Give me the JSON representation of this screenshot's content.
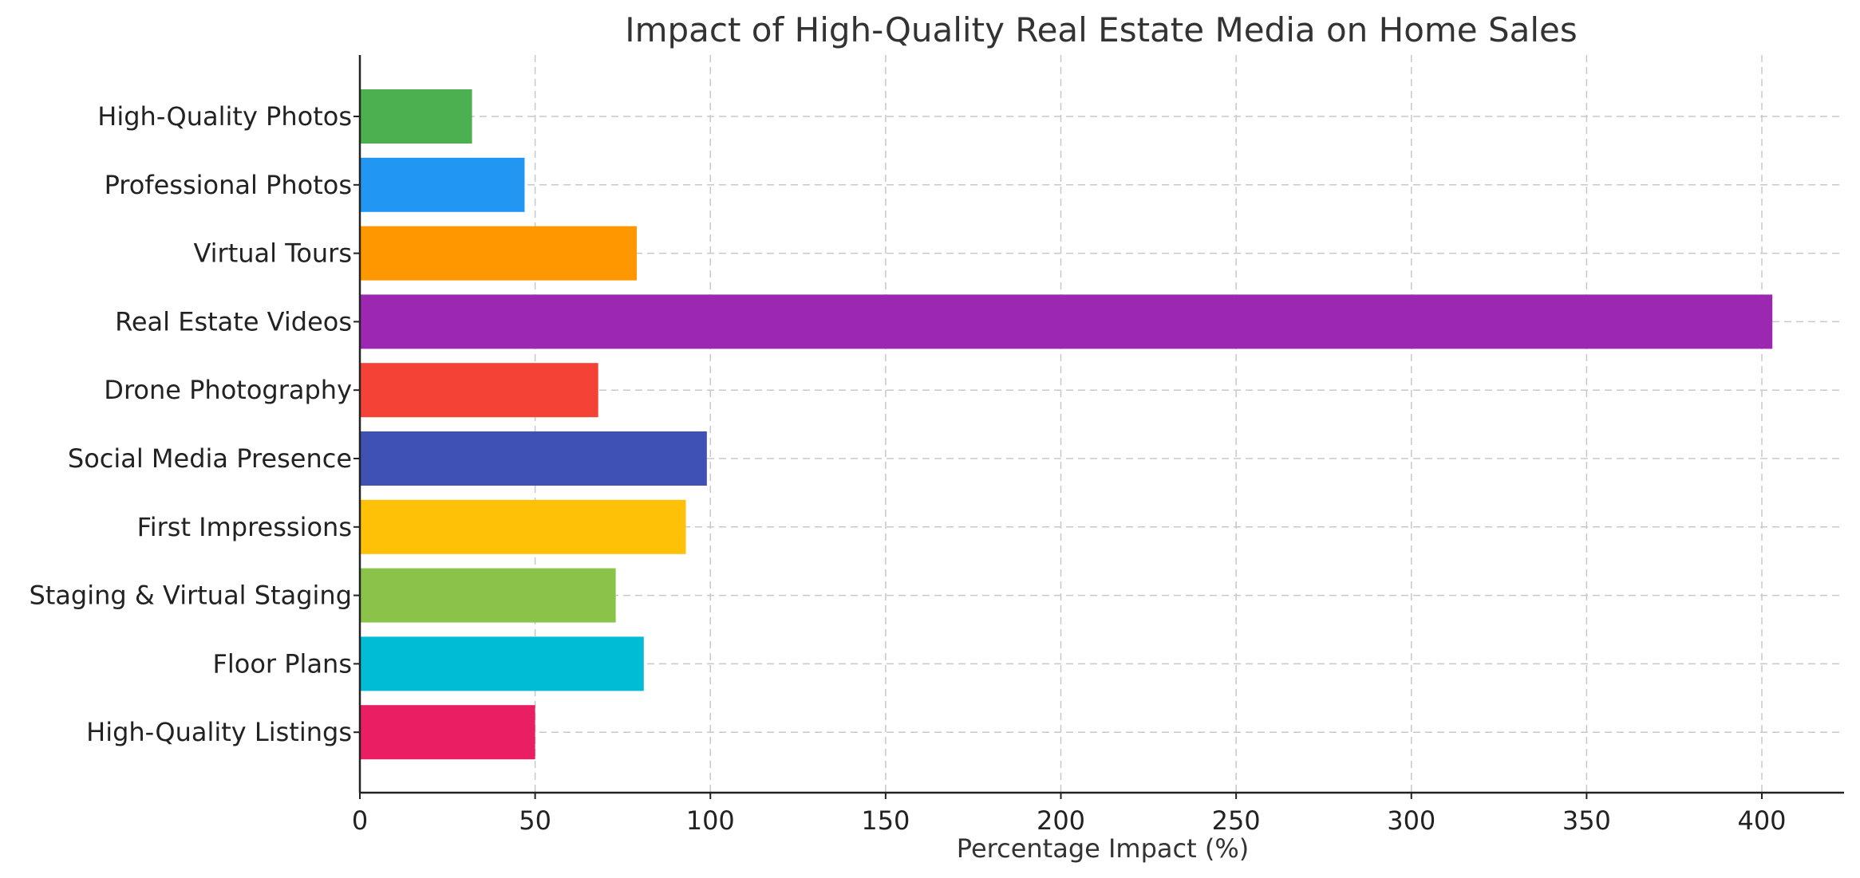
{
  "chart_data": {
    "type": "bar",
    "orientation": "horizontal",
    "title": "Impact of High-Quality Real Estate Media on Home Sales",
    "xlabel": "Percentage Impact (%)",
    "ylabel": "",
    "xlim": [
      0,
      425
    ],
    "xticks": [
      "0",
      "50",
      "100",
      "150",
      "200",
      "250",
      "300",
      "350",
      "400"
    ],
    "grid": true,
    "categories": [
      "High-Quality Photos",
      "Professional Photos",
      "Virtual Tours",
      "Real Estate Videos",
      "Drone Photography",
      "Social Media Presence",
      "First Impressions",
      "Staging & Virtual Staging",
      "Floor Plans",
      "High-Quality Listings"
    ],
    "values": [
      32,
      47,
      79,
      403,
      68,
      99,
      93,
      73,
      81,
      50
    ],
    "colors": [
      "#4CAF50",
      "#2196F3",
      "#FF9800",
      "#9C27B0",
      "#F44336",
      "#3F51B5",
      "#FFC107",
      "#8BC34A",
      "#00BCD4",
      "#E91E63"
    ]
  }
}
